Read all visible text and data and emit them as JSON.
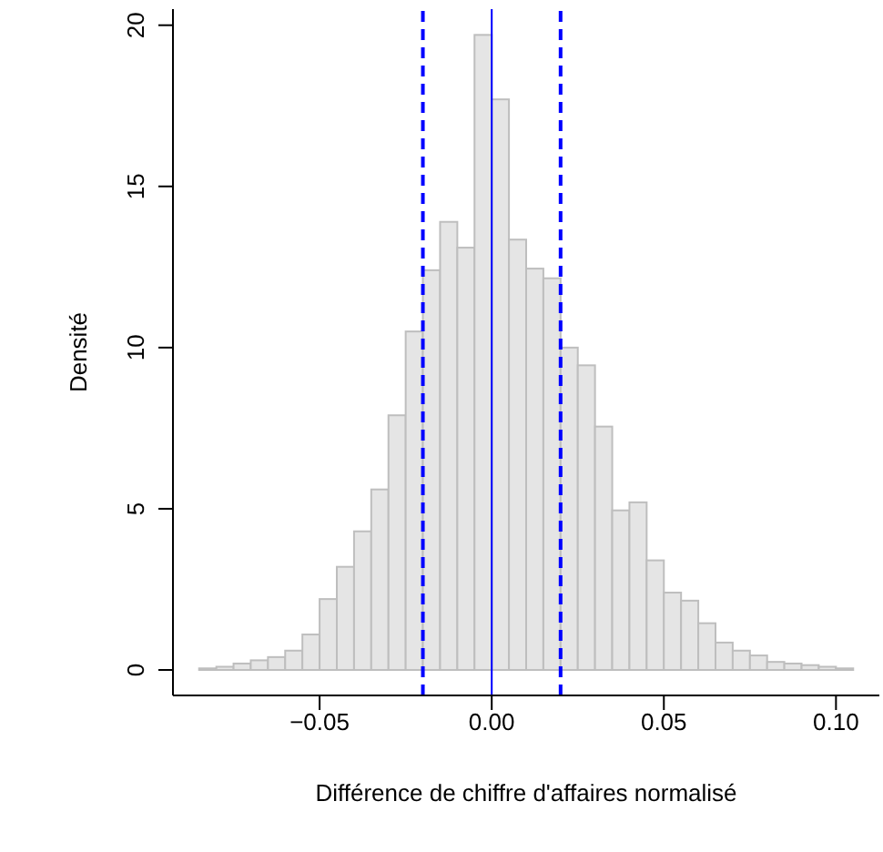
{
  "chart_data": {
    "type": "histogram",
    "xlabel": "Différence de chiffre d'affaires normalisé",
    "ylabel": "Densité",
    "bins": [
      -0.085,
      -0.08,
      -0.075,
      -0.07,
      -0.065,
      -0.06,
      -0.055,
      -0.05,
      -0.045,
      -0.04,
      -0.035,
      -0.03,
      -0.025,
      -0.02,
      -0.015,
      -0.01,
      -0.005,
      0,
      0.005,
      0.01,
      0.015,
      0.02,
      0.025,
      0.03,
      0.035,
      0.04,
      0.045,
      0.05,
      0.055,
      0.06,
      0.065,
      0.07,
      0.075,
      0.08,
      0.085,
      0.09,
      0.095,
      0.1,
      0.105
    ],
    "values": [
      0.05,
      0.1,
      0.2,
      0.3,
      0.4,
      0.6,
      1.1,
      2.2,
      3.2,
      4.3,
      5.6,
      7.9,
      10.5,
      12.4,
      13.9,
      13.1,
      19.7,
      17.7,
      13.35,
      12.45,
      12.15,
      10.0,
      9.45,
      7.55,
      4.95,
      5.2,
      3.4,
      2.4,
      2.15,
      1.45,
      0.85,
      0.6,
      0.45,
      0.25,
      0.2,
      0.15,
      0.1,
      0.05
    ],
    "color": "#e5e5e5",
    "xlim": [
      -0.0926,
      0.1126
    ],
    "xticks": [
      {
        "value": -0.05,
        "label": "−0.05"
      },
      {
        "value": 0,
        "label": "0.00"
      },
      {
        "value": 0.05,
        "label": "0.05"
      },
      {
        "value": 0.1,
        "label": "0.10"
      }
    ],
    "ylim": [
      -0.79,
      20.5
    ],
    "yticks": [
      0,
      5,
      10,
      15,
      20
    ],
    "ref_lines": [
      {
        "axis": "x",
        "value": -0.02,
        "color": "#0000ff",
        "line_style": "dashed"
      },
      {
        "axis": "x",
        "value": 0,
        "color": "#0000ff",
        "line_style": "solid"
      },
      {
        "axis": "x",
        "value": 0.02,
        "color": "#0000ff",
        "line_style": "dashed"
      }
    ]
  }
}
